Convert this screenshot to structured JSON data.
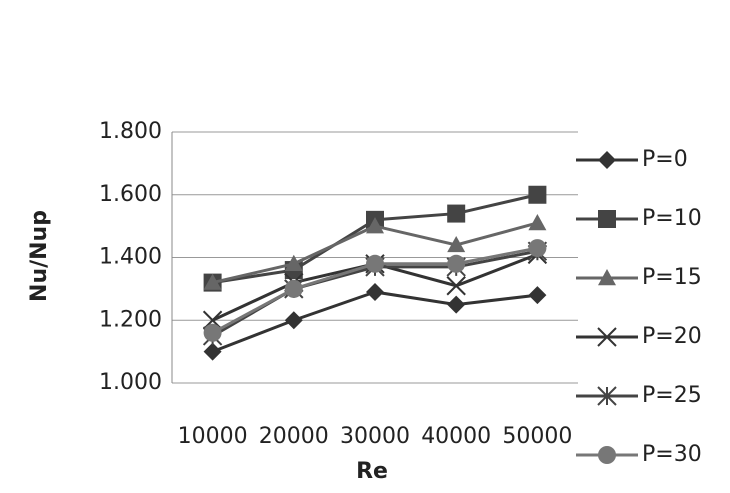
{
  "chart_data": {
    "type": "line",
    "y_label": "Nu/Nup",
    "x_label": "Re",
    "categories": [
      "10000",
      "20000",
      "30000",
      "40000",
      "50000"
    ],
    "series": [
      {
        "name": "P=0",
        "color": "#333333",
        "marker": "diamond",
        "values": [
          1.1,
          1.2,
          1.29,
          1.25,
          1.28
        ]
      },
      {
        "name": "P=10",
        "color": "#444444",
        "marker": "square",
        "values": [
          1.32,
          1.36,
          1.52,
          1.54,
          1.6
        ]
      },
      {
        "name": "P=15",
        "color": "#666666",
        "marker": "triangle",
        "values": [
          1.32,
          1.38,
          1.5,
          1.44,
          1.51
        ]
      },
      {
        "name": "P=20",
        "color": "#333333",
        "marker": "x",
        "values": [
          1.2,
          1.32,
          1.38,
          1.31,
          1.41
        ]
      },
      {
        "name": "P=25",
        "color": "#444444",
        "marker": "star",
        "values": [
          1.15,
          1.3,
          1.37,
          1.37,
          1.42
        ]
      },
      {
        "name": "P=30",
        "color": "#777777",
        "marker": "circle",
        "values": [
          1.16,
          1.3,
          1.38,
          1.38,
          1.43
        ]
      }
    ],
    "ylim": [
      1.0,
      1.8
    ],
    "yticks": [
      {
        "value": 1.0,
        "label": "1.000"
      },
      {
        "value": 1.2,
        "label": "1.200"
      },
      {
        "value": 1.4,
        "label": "1.400"
      },
      {
        "value": 1.6,
        "label": "1.600"
      },
      {
        "value": 1.8,
        "label": "1.800"
      }
    ],
    "grid": true
  }
}
